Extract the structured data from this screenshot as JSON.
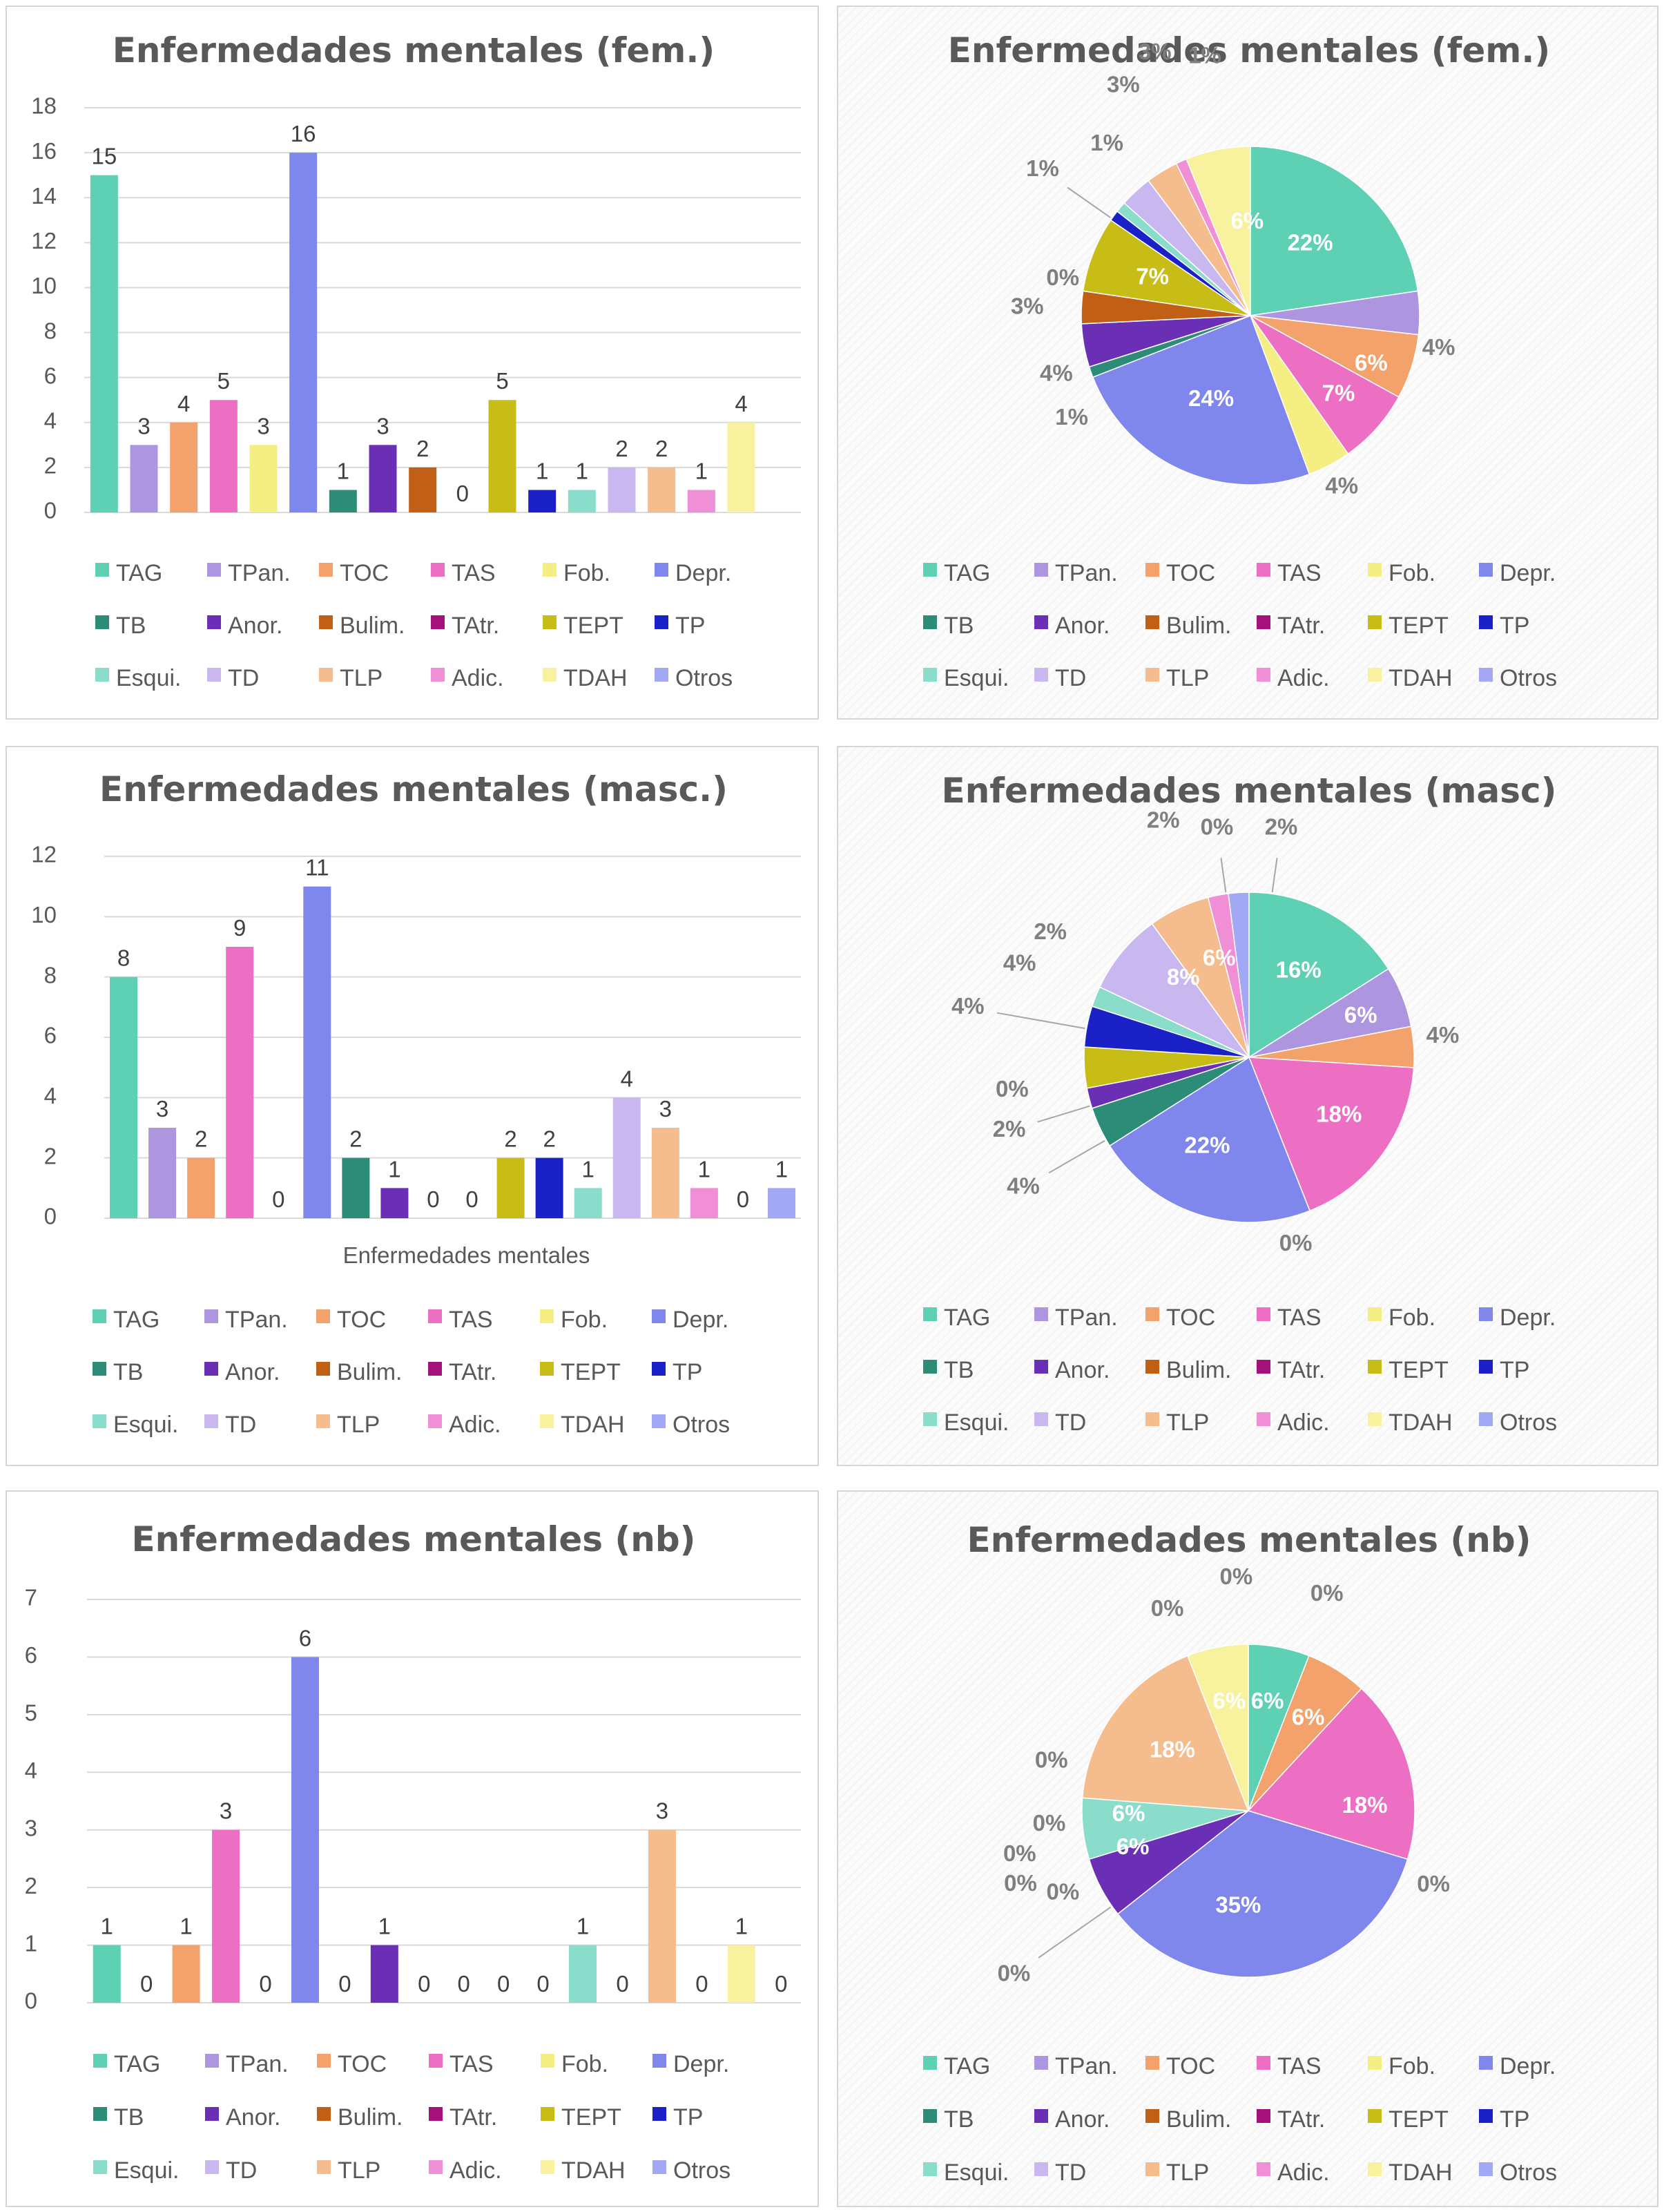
{
  "palette": {
    "TAG": "#5ED1B5",
    "TPan.": "#AD95E0",
    "TOC": "#F2A26A",
    "TAS": "#EC6FC4",
    "Fob.": "#F5EE82",
    "Depr.": "#7F86EC",
    "TB": "#2C8C77",
    "Anor.": "#6A2FB5",
    "Bulim.": "#C15F14",
    "TAtr.": "#A4117A",
    "TEPT": "#C8BC16",
    "TP": "#1A22C7",
    "Esqui.": "#8ADDCA",
    "TD": "#C9B7F0",
    "TLP": "#F5BC8E",
    "Adic.": "#F08ED6",
    "TDAH": "#F8F29E",
    "Otros": "#A3A8F4"
  },
  "legend_labels": [
    "TAG",
    "TPan.",
    "TOC",
    "TAS",
    "Fob.",
    "Depr.",
    "TB",
    "Anor.",
    "Bulim.",
    "TAtr.",
    "TEPT",
    "TP",
    "Esqui.",
    "TD",
    "TLP",
    "Adic.",
    "TDAH",
    "Otros"
  ],
  "chart_data": [
    {
      "type": "bar",
      "title": "Enfermedades mentales (fem.)",
      "xlabel": "",
      "ylabel": "",
      "ylim": [
        0,
        18
      ],
      "yticks": [
        0,
        2,
        4,
        6,
        8,
        10,
        12,
        14,
        16,
        18
      ],
      "grid": true,
      "legend": "bottom",
      "categories": [
        "TAG",
        "TPan.",
        "TOC",
        "TAS",
        "Fob.",
        "Depr.",
        "TB",
        "Anor.",
        "Bulim.",
        "TAtr.",
        "TEPT",
        "TP",
        "Esqui.",
        "TD",
        "TLP",
        "Adic.",
        "TDAH",
        "Otros"
      ],
      "values": [
        15,
        3,
        4,
        5,
        3,
        16,
        1,
        3,
        2,
        0,
        5,
        1,
        1,
        2,
        2,
        1,
        4,
        null
      ],
      "data_labels": [
        "15",
        "3",
        "4",
        "5",
        "3",
        "16",
        "1",
        "3",
        "2",
        "0",
        "5",
        "1",
        "1",
        "2",
        "2",
        "1",
        "4",
        ""
      ]
    },
    {
      "type": "pie",
      "title": "Enfermedades mentales (fem.)",
      "legend": "bottom",
      "categories": [
        "TAG",
        "TPan.",
        "TOC",
        "TAS",
        "Fob.",
        "Depr.",
        "TB",
        "Anor.",
        "Bulim.",
        "TAtr.",
        "TEPT",
        "TP",
        "Esqui.",
        "TD",
        "TLP",
        "Adic.",
        "TDAH",
        "Otros"
      ],
      "values": [
        22,
        4,
        6,
        7,
        4,
        24,
        1,
        4,
        3,
        0,
        7,
        1,
        1,
        3,
        3,
        1,
        6,
        0
      ],
      "data_labels": [
        "22%",
        "4%",
        "6%",
        "7%",
        "4%",
        "24%",
        "1%",
        "4%",
        "3%",
        "0%",
        "7%",
        "1%",
        "1%",
        "3%",
        "3%",
        "1%",
        "6%",
        ""
      ]
    },
    {
      "type": "bar",
      "title": "Enfermedades mentales (masc.)",
      "xlabel": "Enfermedades mentales",
      "ylabel": "",
      "ylim": [
        0,
        12
      ],
      "yticks": [
        0,
        2,
        4,
        6,
        8,
        10,
        12
      ],
      "grid": true,
      "legend": "bottom",
      "categories": [
        "TAG",
        "TPan.",
        "TOC",
        "TAS",
        "Fob.",
        "Depr.",
        "TB",
        "Anor.",
        "Bulim.",
        "TAtr.",
        "TEPT",
        "TP",
        "Esqui.",
        "TD",
        "TLP",
        "Adic.",
        "TDAH",
        "Otros"
      ],
      "values": [
        8,
        3,
        2,
        9,
        0,
        11,
        2,
        1,
        0,
        0,
        2,
        2,
        1,
        4,
        3,
        1,
        0,
        1
      ],
      "data_labels": [
        "8",
        "3",
        "2",
        "9",
        "0",
        "11",
        "2",
        "1",
        "0",
        "0",
        "2",
        "2",
        "1",
        "4",
        "3",
        "1",
        "0",
        "1"
      ]
    },
    {
      "type": "pie",
      "title": "Enfermedades mentales (masc)",
      "legend": "bottom",
      "categories": [
        "TAG",
        "TPan.",
        "TOC",
        "TAS",
        "Fob.",
        "Depr.",
        "TB",
        "Anor.",
        "Bulim.",
        "TAtr.",
        "TEPT",
        "TP",
        "Esqui.",
        "TD",
        "TLP",
        "Adic.",
        "TDAH",
        "Otros"
      ],
      "values": [
        16,
        6,
        4,
        18,
        0,
        22,
        4,
        2,
        0,
        0,
        4,
        4,
        2,
        8,
        6,
        2,
        0,
        2
      ],
      "data_labels": [
        "16%",
        "6%",
        "4%",
        "18%",
        "0%",
        "22%",
        "4%",
        "2%",
        "0%",
        "",
        "4%",
        "4%",
        "2%",
        "8%",
        "6%",
        "2%",
        "0%",
        "2%"
      ]
    },
    {
      "type": "bar",
      "title": "Enfermedades mentales (nb)",
      "xlabel": "",
      "ylabel": "",
      "ylim": [
        0,
        7
      ],
      "yticks": [
        0,
        1,
        2,
        3,
        4,
        5,
        6,
        7
      ],
      "grid": true,
      "legend": "bottom",
      "categories": [
        "TAG",
        "TPan.",
        "TOC",
        "TAS",
        "Fob.",
        "Depr.",
        "TB",
        "Anor.",
        "Bulim.",
        "TAtr.",
        "TEPT",
        "TP",
        "Esqui.",
        "TD",
        "TLP",
        "Adic.",
        "TDAH",
        "Otros"
      ],
      "values": [
        1,
        0,
        1,
        3,
        0,
        6,
        0,
        1,
        0,
        0,
        0,
        0,
        1,
        0,
        3,
        0,
        1,
        0
      ],
      "data_labels": [
        "1",
        "0",
        "1",
        "3",
        "0",
        "6",
        "0",
        "1",
        "0",
        "0",
        "0",
        "0",
        "1",
        "0",
        "3",
        "0",
        "1",
        "0"
      ]
    },
    {
      "type": "pie",
      "title": "Enfermedades mentales (nb)",
      "legend": "bottom",
      "categories": [
        "TAG",
        "TPan.",
        "TOC",
        "TAS",
        "Fob.",
        "Depr.",
        "TB",
        "Anor.",
        "Bulim.",
        "TAtr.",
        "TEPT",
        "TP",
        "Esqui.",
        "TD",
        "TLP",
        "Adic.",
        "TDAH",
        "Otros"
      ],
      "values": [
        6,
        0,
        6,
        18,
        0,
        35,
        0,
        6,
        0,
        0,
        0,
        0,
        6,
        0,
        18,
        0,
        6,
        0
      ],
      "data_labels": [
        "6%",
        "0%",
        "6%",
        "18%",
        "0%",
        "35%",
        "0%",
        "6%",
        "0%",
        "0%",
        "0%",
        "0%",
        "6%",
        "0%",
        "18%",
        "0%",
        "6%",
        "0%"
      ]
    }
  ]
}
